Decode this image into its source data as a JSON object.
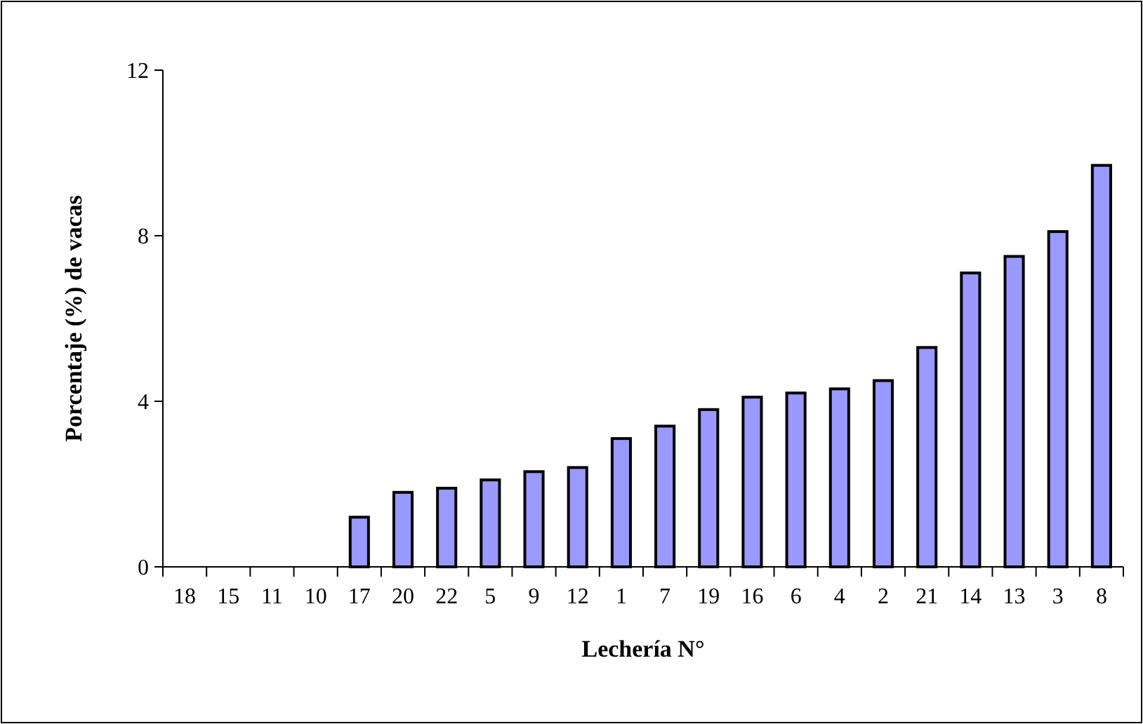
{
  "chart_data": {
    "type": "bar",
    "xlabel": "Lechería N°",
    "ylabel": "Porcentaje (%) de vacas",
    "categories": [
      "18",
      "15",
      "11",
      "10",
      "17",
      "20",
      "22",
      "5",
      "9",
      "12",
      "1",
      "7",
      "19",
      "16",
      "6",
      "4",
      "2",
      "21",
      "14",
      "13",
      "3",
      "8"
    ],
    "values": [
      0,
      0,
      0,
      0,
      1.2,
      1.8,
      1.9,
      2.1,
      2.3,
      2.4,
      3.1,
      3.4,
      3.8,
      4.1,
      4.2,
      4.3,
      4.5,
      5.3,
      7.1,
      7.5,
      8.1,
      9.7
    ],
    "color": "#9999ff",
    "ylim": [
      0,
      12
    ],
    "yticks": [
      0,
      4,
      8,
      12
    ],
    "grid": false
  }
}
